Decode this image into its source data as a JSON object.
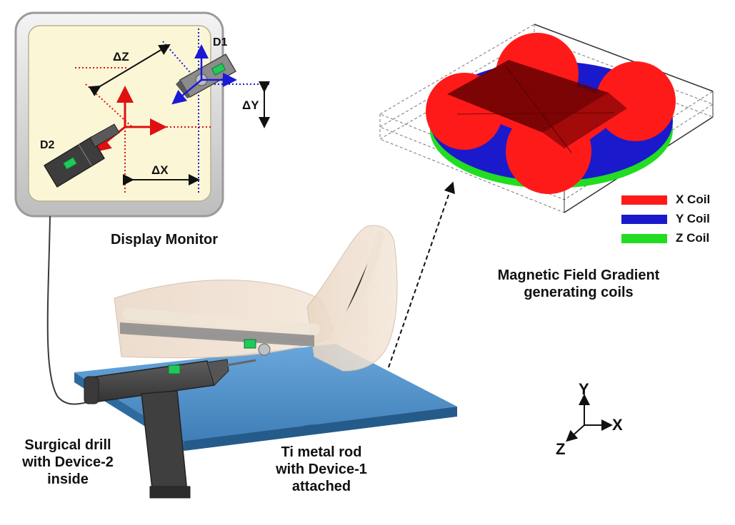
{
  "monitor": {
    "caption": "Display Monitor",
    "labels": {
      "d1": "D1",
      "d2": "D2",
      "dx": "ΔX",
      "dy": "ΔY",
      "dz": "ΔZ"
    }
  },
  "coils": {
    "caption_line1": "Magnetic Field Gradient",
    "caption_line2": "generating coils",
    "legend": [
      {
        "label": "X Coil",
        "color": "#ff1a1a"
      },
      {
        "label": "Y Coil",
        "color": "#1a1acc"
      },
      {
        "label": "Z Coil",
        "color": "#22dd22"
      }
    ]
  },
  "drill": {
    "line1": "Surgical drill",
    "line2": "with Device-2",
    "line3": "inside"
  },
  "rod": {
    "line1": "Ti metal rod",
    "line2": "with Device-1",
    "line3": "attached"
  },
  "axes": {
    "x": "X",
    "y": "Y",
    "z": "Z"
  },
  "colors": {
    "table": "#4d8cc4",
    "monitor_screen": "#fbf7d6",
    "drill": "#4a4a4a",
    "device": "#22c85a"
  }
}
